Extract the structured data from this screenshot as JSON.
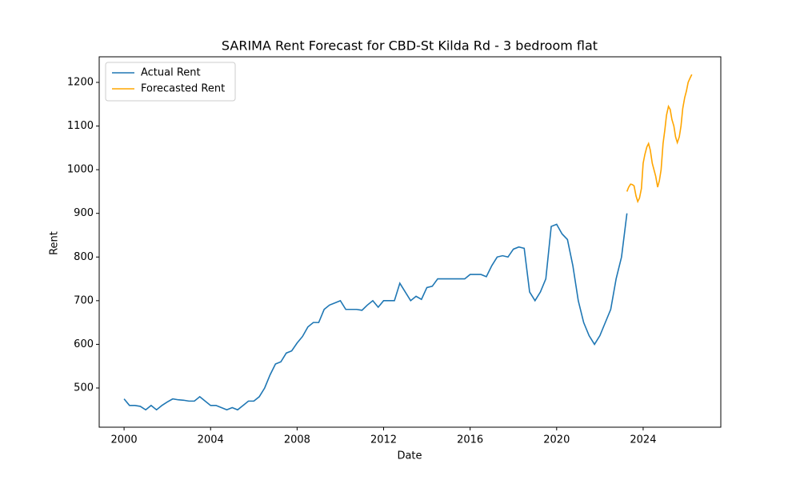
{
  "chart_data": {
    "type": "line",
    "title": "SARIMA Rent Forecast for CBD-St Kilda Rd - 3 bedroom flat",
    "x_label": "Date",
    "y_label": "Rent",
    "xlim": [
      1998.85,
      2027.59
    ],
    "xticks": [
      2000,
      2004,
      2008,
      2012,
      2016,
      2020,
      2024
    ],
    "ylim": [
      410.2,
      1258.6
    ],
    "yticks": [
      500,
      600,
      700,
      800,
      900,
      1000,
      1100,
      1200
    ],
    "grid": false,
    "legend": "upper-left",
    "series": [
      {
        "name": "Actual Rent",
        "color": "#1f77b4",
        "x": [
          2000.0,
          2000.25,
          2000.5,
          2000.75,
          2001.0,
          2001.25,
          2001.5,
          2001.75,
          2002.0,
          2002.25,
          2002.5,
          2002.75,
          2003.0,
          2003.25,
          2003.5,
          2003.75,
          2004.0,
          2004.25,
          2004.5,
          2004.75,
          2005.0,
          2005.25,
          2005.5,
          2005.75,
          2006.0,
          2006.25,
          2006.5,
          2006.75,
          2007.0,
          2007.25,
          2007.5,
          2007.75,
          2008.0,
          2008.25,
          2008.5,
          2008.75,
          2009.0,
          2009.25,
          2009.5,
          2009.75,
          2010.0,
          2010.25,
          2010.5,
          2010.75,
          2011.0,
          2011.25,
          2011.5,
          2011.75,
          2012.0,
          2012.25,
          2012.5,
          2012.75,
          2013.0,
          2013.25,
          2013.5,
          2013.75,
          2014.0,
          2014.25,
          2014.5,
          2014.75,
          2015.0,
          2015.25,
          2015.5,
          2015.75,
          2016.0,
          2016.25,
          2016.5,
          2016.75,
          2017.0,
          2017.25,
          2017.5,
          2017.75,
          2018.0,
          2018.25,
          2018.5,
          2018.75,
          2019.0,
          2019.25,
          2019.5,
          2019.75,
          2020.0,
          2020.25,
          2020.5,
          2020.75,
          2021.0,
          2021.25,
          2021.5,
          2021.75,
          2022.0,
          2022.25,
          2022.5,
          2022.75,
          2023.0,
          2023.25
        ],
        "values": [
          475,
          460,
          460,
          458,
          450,
          460,
          450,
          460,
          468,
          475,
          473,
          472,
          470,
          470,
          480,
          470,
          460,
          460,
          455,
          450,
          455,
          450,
          460,
          470,
          470,
          480,
          500,
          530,
          555,
          560,
          580,
          585,
          603,
          618,
          640,
          650,
          650,
          680,
          690,
          695,
          700,
          680,
          680,
          680,
          678,
          690,
          700,
          685,
          700,
          700,
          700,
          740,
          720,
          700,
          710,
          703,
          730,
          733,
          750,
          750,
          750,
          750,
          750,
          750,
          760,
          760,
          760,
          755,
          780,
          800,
          803,
          800,
          818,
          823,
          820,
          720,
          700,
          720,
          750,
          870,
          875,
          853,
          840,
          780,
          700,
          650,
          620,
          600,
          620,
          650,
          680,
          750,
          800,
          900
        ]
      },
      {
        "name": "Forecasted Rent",
        "color": "#ffa500",
        "x": [
          2023.25,
          2023.33,
          2023.42,
          2023.5,
          2023.58,
          2023.67,
          2023.75,
          2023.83,
          2023.92,
          2024.0,
          2024.08,
          2024.17,
          2024.25,
          2024.33,
          2024.42,
          2024.5,
          2024.58,
          2024.67,
          2024.75,
          2024.83,
          2024.92,
          2025.0,
          2025.08,
          2025.17,
          2025.25,
          2025.33,
          2025.42,
          2025.5,
          2025.58,
          2025.67,
          2025.75,
          2025.83,
          2025.92,
          2026.0,
          2026.08,
          2026.17,
          2026.25
        ],
        "values": [
          950,
          960,
          967,
          966,
          963,
          940,
          927,
          935,
          957,
          1015,
          1035,
          1052,
          1060,
          1045,
          1015,
          1000,
          985,
          960,
          975,
          1000,
          1060,
          1090,
          1125,
          1145,
          1138,
          1115,
          1100,
          1075,
          1062,
          1075,
          1100,
          1140,
          1165,
          1180,
          1200,
          1210,
          1218
        ]
      }
    ]
  }
}
